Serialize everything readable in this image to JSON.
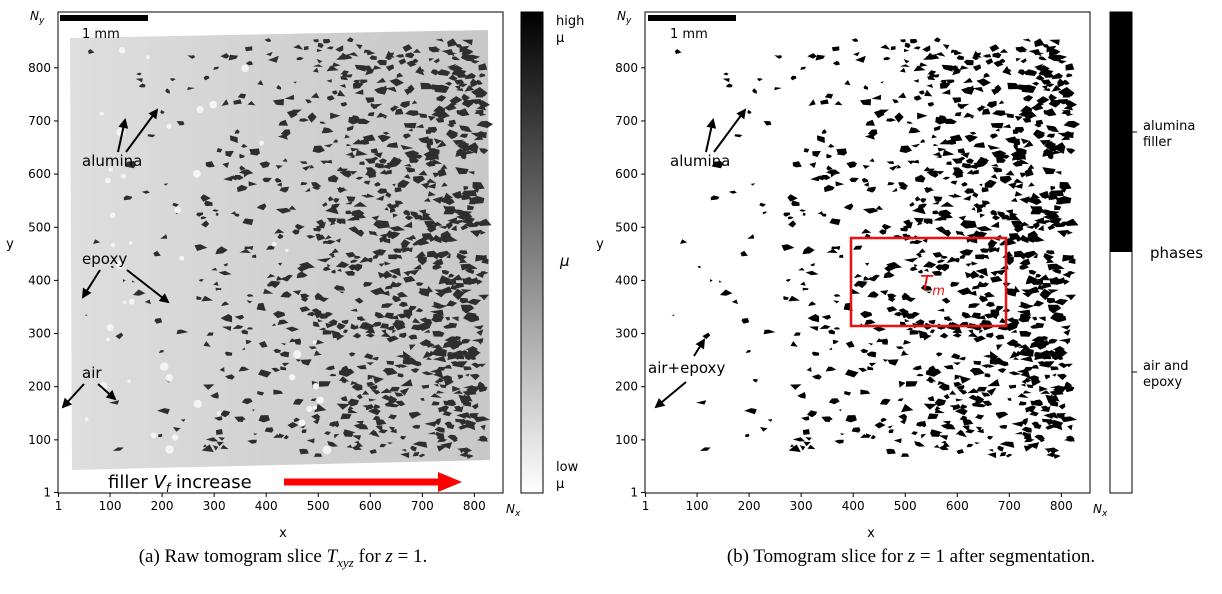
{
  "panel_a": {
    "scalebar_label": "1 mm",
    "y_axis_top": "N",
    "y_axis_top_sub": "y",
    "x_axis_end": "N",
    "x_axis_end_sub": "x",
    "xlabel": "x",
    "ylabel": "y",
    "x_ticks": [
      "1",
      "100",
      "200",
      "300",
      "400",
      "500",
      "600",
      "700",
      "800"
    ],
    "y_ticks": [
      "1",
      "100",
      "200",
      "300",
      "400",
      "500",
      "600",
      "700",
      "800"
    ],
    "annotations": {
      "alumina": "alumina",
      "epoxy": "epoxy",
      "air": "air",
      "filler_prefix": "filler ",
      "filler_var": "V",
      "filler_sub": "f",
      "filler_suffix": " increase"
    },
    "colorbar": {
      "high": "high",
      "high_mu": "μ",
      "low": "low",
      "low_mu": "μ",
      "label": "μ"
    },
    "caption": {
      "prefix": "(a) Raw tomogram slice ",
      "sym": "T",
      "sym_sub": "xyz",
      "mid": " for ",
      "z": "z",
      "eq": " = 1."
    },
    "image_description_colors": {
      "background": "#cfcfcf",
      "particles": "#2b2b2b",
      "arrow_filler": "#ff0000"
    }
  },
  "panel_b": {
    "scalebar_label": "1 mm",
    "y_axis_top": "N",
    "y_axis_top_sub": "y",
    "x_axis_end": "N",
    "x_axis_end_sub": "x",
    "xlabel": "x",
    "ylabel": "y",
    "x_ticks": [
      "1",
      "100",
      "200",
      "300",
      "400",
      "500",
      "600",
      "700",
      "800"
    ],
    "y_ticks": [
      "1",
      "100",
      "200",
      "300",
      "400",
      "500",
      "600",
      "700",
      "800"
    ],
    "annotations": {
      "alumina": "alumina",
      "air_epoxy": "air+epoxy",
      "tm_base": "T",
      "tm_sub": "m"
    },
    "colorbar": {
      "top_label_1": "alumina",
      "top_label_2": "filler",
      "bottom_label_1": "air and",
      "bottom_label_2": "epoxy",
      "label": "phases"
    },
    "caption": {
      "prefix": "(b) Tomogram slice for ",
      "z": "z",
      "eq": " = 1 after segmentation."
    },
    "region_box_color": "#ee1111"
  }
}
